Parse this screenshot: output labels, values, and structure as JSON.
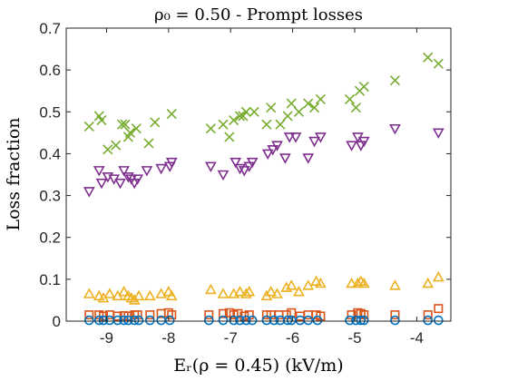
{
  "chart_data": {
    "type": "scatter",
    "title": "ρ₀ = 0.50 - Prompt losses",
    "xlabel": "Eᵣ(ρ = 0.45) (kV/m)",
    "ylabel": "Loss fraction",
    "xlim": [
      -9.65,
      -3.45
    ],
    "ylim": [
      0,
      0.7
    ],
    "xticks": [
      -9,
      -8,
      -7,
      -6,
      -5,
      -4
    ],
    "xtick_labels": [
      "-9",
      "-8",
      "-7",
      "-6",
      "-5",
      "-4"
    ],
    "yticks": [
      0,
      0.1,
      0.2,
      0.3,
      0.4,
      0.5,
      0.6,
      0.7
    ],
    "ytick_labels": [
      "0",
      "0.1",
      "0.2",
      "0.3",
      "0.4",
      "0.5",
      "0.6",
      "0.7"
    ],
    "grid": false,
    "legend": "none",
    "series": [
      {
        "marker": "x",
        "color": "#77AC30",
        "points": [
          [
            -9.28,
            0.465
          ],
          [
            -9.12,
            0.49
          ],
          [
            -9.08,
            0.48
          ],
          [
            -8.98,
            0.41
          ],
          [
            -8.85,
            0.42
          ],
          [
            -8.75,
            0.47
          ],
          [
            -8.7,
            0.47
          ],
          [
            -8.65,
            0.44
          ],
          [
            -8.62,
            0.45
          ],
          [
            -8.52,
            0.46
          ],
          [
            -8.32,
            0.425
          ],
          [
            -8.22,
            0.475
          ],
          [
            -7.95,
            0.495
          ],
          [
            -7.32,
            0.46
          ],
          [
            -7.12,
            0.47
          ],
          [
            -7.02,
            0.44
          ],
          [
            -6.95,
            0.48
          ],
          [
            -6.85,
            0.49
          ],
          [
            -6.8,
            0.49
          ],
          [
            -6.75,
            0.5
          ],
          [
            -6.62,
            0.5
          ],
          [
            -6.42,
            0.47
          ],
          [
            -6.35,
            0.51
          ],
          [
            -6.2,
            0.47
          ],
          [
            -6.08,
            0.49
          ],
          [
            -6.02,
            0.52
          ],
          [
            -5.9,
            0.5
          ],
          [
            -5.75,
            0.52
          ],
          [
            -5.65,
            0.51
          ],
          [
            -5.55,
            0.53
          ],
          [
            -5.08,
            0.53
          ],
          [
            -4.98,
            0.51
          ],
          [
            -4.92,
            0.55
          ],
          [
            -4.85,
            0.56
          ],
          [
            -4.35,
            0.575
          ],
          [
            -3.82,
            0.63
          ],
          [
            -3.65,
            0.615
          ]
        ]
      },
      {
        "marker": "triangle-down",
        "color": "#7E2F8E",
        "points": [
          [
            -9.28,
            0.31
          ],
          [
            -9.12,
            0.36
          ],
          [
            -9.08,
            0.33
          ],
          [
            -8.98,
            0.345
          ],
          [
            -8.88,
            0.34
          ],
          [
            -8.78,
            0.33
          ],
          [
            -8.72,
            0.36
          ],
          [
            -8.65,
            0.345
          ],
          [
            -8.6,
            0.34
          ],
          [
            -8.55,
            0.33
          ],
          [
            -8.5,
            0.34
          ],
          [
            -8.35,
            0.36
          ],
          [
            -8.12,
            0.365
          ],
          [
            -7.98,
            0.37
          ],
          [
            -7.95,
            0.38
          ],
          [
            -7.32,
            0.37
          ],
          [
            -7.12,
            0.35
          ],
          [
            -6.92,
            0.38
          ],
          [
            -6.85,
            0.365
          ],
          [
            -6.78,
            0.36
          ],
          [
            -6.7,
            0.37
          ],
          [
            -6.65,
            0.38
          ],
          [
            -6.4,
            0.4
          ],
          [
            -6.32,
            0.41
          ],
          [
            -6.25,
            0.42
          ],
          [
            -6.12,
            0.39
          ],
          [
            -6.05,
            0.44
          ],
          [
            -5.95,
            0.44
          ],
          [
            -5.75,
            0.39
          ],
          [
            -5.65,
            0.43
          ],
          [
            -5.55,
            0.44
          ],
          [
            -5.05,
            0.42
          ],
          [
            -4.95,
            0.44
          ],
          [
            -4.9,
            0.42
          ],
          [
            -4.85,
            0.43
          ],
          [
            -4.35,
            0.46
          ],
          [
            -3.65,
            0.45
          ]
        ]
      },
      {
        "marker": "triangle-up",
        "color": "#EDB120",
        "points": [
          [
            -9.28,
            0.065
          ],
          [
            -9.12,
            0.06
          ],
          [
            -9.05,
            0.055
          ],
          [
            -8.95,
            0.065
          ],
          [
            -8.82,
            0.06
          ],
          [
            -8.72,
            0.07
          ],
          [
            -8.65,
            0.06
          ],
          [
            -8.6,
            0.055
          ],
          [
            -8.55,
            0.05
          ],
          [
            -8.48,
            0.06
          ],
          [
            -8.3,
            0.06
          ],
          [
            -8.12,
            0.065
          ],
          [
            -8.0,
            0.07
          ],
          [
            -7.95,
            0.06
          ],
          [
            -7.32,
            0.075
          ],
          [
            -7.12,
            0.065
          ],
          [
            -6.95,
            0.065
          ],
          [
            -6.85,
            0.07
          ],
          [
            -6.75,
            0.065
          ],
          [
            -6.7,
            0.07
          ],
          [
            -6.42,
            0.06
          ],
          [
            -6.35,
            0.07
          ],
          [
            -6.25,
            0.065
          ],
          [
            -6.1,
            0.08
          ],
          [
            -6.02,
            0.085
          ],
          [
            -5.9,
            0.07
          ],
          [
            -5.75,
            0.085
          ],
          [
            -5.62,
            0.095
          ],
          [
            -5.55,
            0.09
          ],
          [
            -5.05,
            0.09
          ],
          [
            -4.95,
            0.09
          ],
          [
            -4.9,
            0.095
          ],
          [
            -4.85,
            0.09
          ],
          [
            -4.35,
            0.085
          ],
          [
            -3.82,
            0.09
          ],
          [
            -3.65,
            0.105
          ]
        ]
      },
      {
        "marker": "square",
        "color": "#D95319",
        "points": [
          [
            -9.28,
            0.015
          ],
          [
            -9.12,
            0.015
          ],
          [
            -9.05,
            0.012
          ],
          [
            -8.95,
            0.015
          ],
          [
            -8.82,
            0.012
          ],
          [
            -8.72,
            0.013
          ],
          [
            -8.65,
            0.012
          ],
          [
            -8.55,
            0.015
          ],
          [
            -8.5,
            0.015
          ],
          [
            -8.3,
            0.015
          ],
          [
            -8.12,
            0.018
          ],
          [
            -8.0,
            0.02
          ],
          [
            -7.95,
            0.015
          ],
          [
            -7.35,
            0.015
          ],
          [
            -7.12,
            0.018
          ],
          [
            -7.02,
            0.02
          ],
          [
            -6.95,
            0.015
          ],
          [
            -6.88,
            0.018
          ],
          [
            -6.78,
            0.012
          ],
          [
            -6.7,
            0.015
          ],
          [
            -6.42,
            0.015
          ],
          [
            -6.35,
            0.015
          ],
          [
            -6.22,
            0.015
          ],
          [
            -6.1,
            0.015
          ],
          [
            -6.02,
            0.02
          ],
          [
            -5.88,
            0.012
          ],
          [
            -5.75,
            0.015
          ],
          [
            -5.62,
            0.015
          ],
          [
            -5.55,
            0.012
          ],
          [
            -5.05,
            0.015
          ],
          [
            -4.95,
            0.02
          ],
          [
            -4.9,
            0.018
          ],
          [
            -4.85,
            0.015
          ],
          [
            -4.35,
            0.015
          ],
          [
            -3.82,
            0.015
          ],
          [
            -3.65,
            0.03
          ]
        ]
      },
      {
        "marker": "circle",
        "color": "#0072BD",
        "points": [
          [
            -9.28,
            0.002
          ],
          [
            -9.12,
            0.002
          ],
          [
            -9.05,
            0.002
          ],
          [
            -8.95,
            0.002
          ],
          [
            -8.82,
            0.002
          ],
          [
            -8.72,
            0.002
          ],
          [
            -8.65,
            0.002
          ],
          [
            -8.55,
            0.002
          ],
          [
            -8.48,
            0.002
          ],
          [
            -8.3,
            0.002
          ],
          [
            -8.12,
            0.002
          ],
          [
            -7.98,
            0.002
          ],
          [
            -7.35,
            0.002
          ],
          [
            -7.12,
            0.002
          ],
          [
            -6.95,
            0.002
          ],
          [
            -6.85,
            0.002
          ],
          [
            -6.75,
            0.002
          ],
          [
            -6.65,
            0.002
          ],
          [
            -6.42,
            0.002
          ],
          [
            -6.3,
            0.002
          ],
          [
            -6.2,
            0.002
          ],
          [
            -6.08,
            0.002
          ],
          [
            -6.02,
            0.002
          ],
          [
            -5.88,
            0.002
          ],
          [
            -5.75,
            0.002
          ],
          [
            -5.6,
            0.002
          ],
          [
            -5.08,
            0.002
          ],
          [
            -4.98,
            0.002
          ],
          [
            -4.9,
            0.002
          ],
          [
            -4.85,
            0.002
          ],
          [
            -4.35,
            0.002
          ],
          [
            -3.82,
            0.002
          ],
          [
            -3.65,
            0.002
          ]
        ]
      }
    ]
  }
}
